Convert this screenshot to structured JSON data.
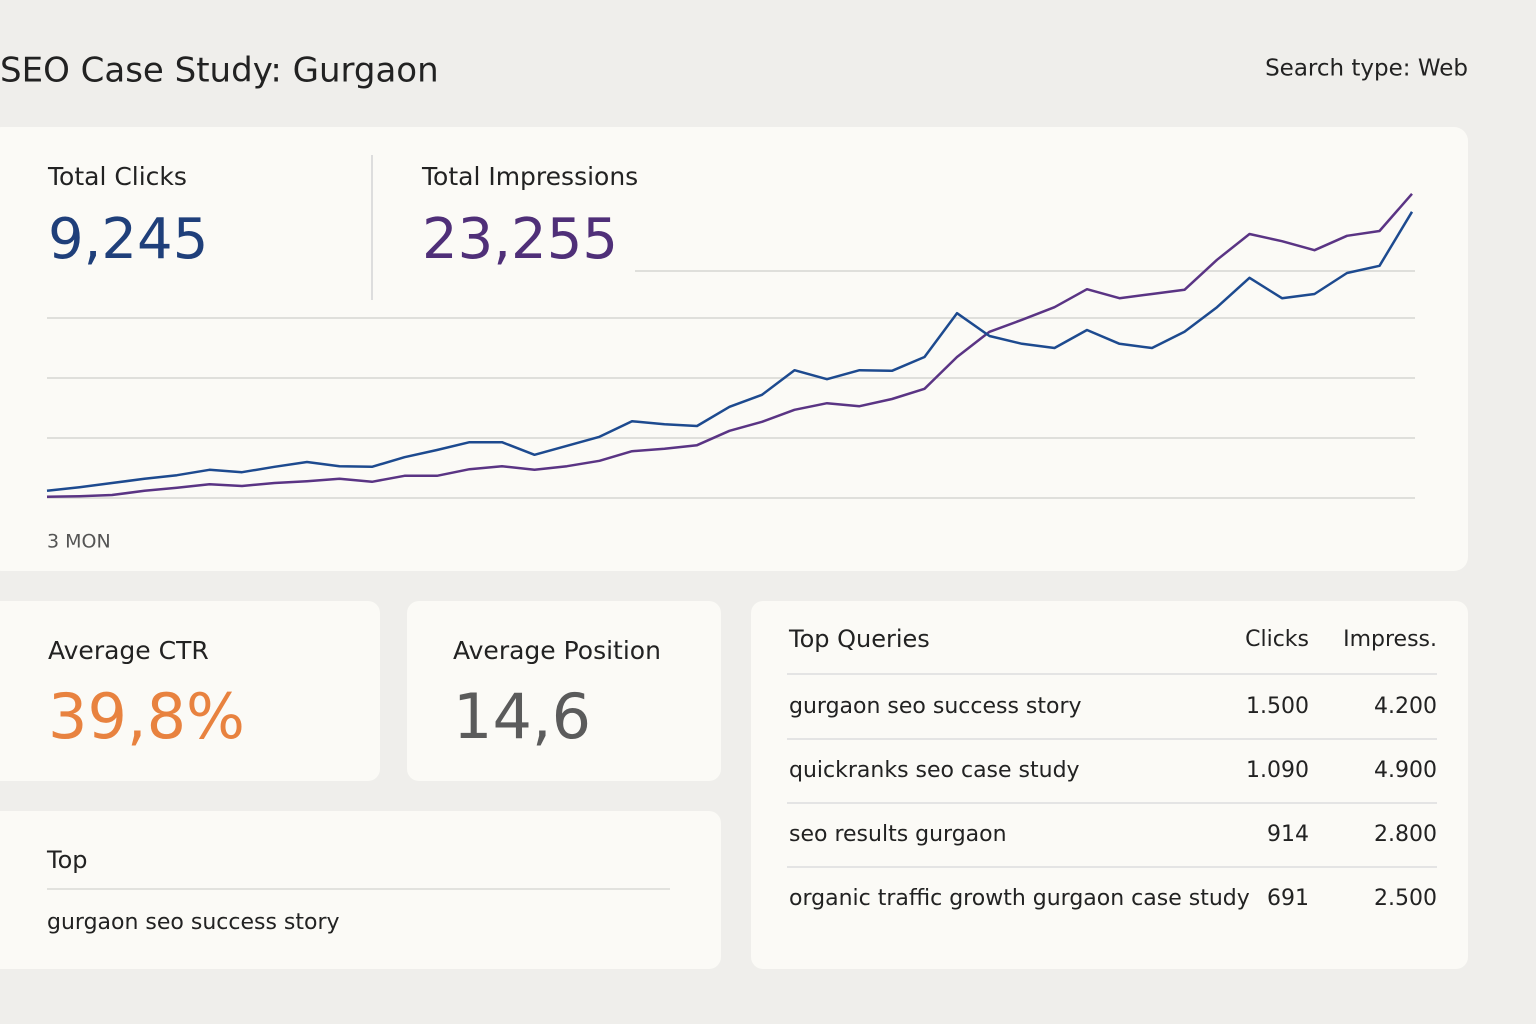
{
  "header": {
    "title": "SEO Case Study: Gurgaon",
    "search_type": "Search type: Web"
  },
  "metrics": {
    "clicks": {
      "label": "Total Clicks",
      "value": "9,245"
    },
    "impressions": {
      "label": "Total Impressions",
      "value": "23,255"
    },
    "ctr": {
      "label": "Average CTR",
      "value": "39,8%"
    },
    "position": {
      "label": "Average Position",
      "value": "14,6"
    }
  },
  "chart_data": {
    "type": "line",
    "xlabel": "3 MON",
    "categories": [
      null,
      null,
      null,
      null,
      null,
      null,
      null,
      null,
      null,
      null,
      null,
      null,
      null,
      null,
      null,
      null,
      null,
      null,
      null,
      null,
      null,
      null,
      null,
      null,
      null,
      null,
      null,
      null,
      null,
      null,
      null,
      null,
      null,
      null,
      null,
      null,
      null,
      null,
      null,
      null,
      null,
      null,
      null
    ],
    "series": [
      {
        "color": "#1d4a8f",
        "values": [
          0.12,
          0.18,
          0.25,
          0.32,
          0.38,
          0.47,
          0.43,
          0.52,
          0.6,
          0.53,
          0.52,
          0.68,
          0.8,
          0.93,
          0.93,
          0.72,
          0.87,
          1.02,
          1.28,
          1.23,
          1.2,
          1.52,
          1.72,
          2.13,
          1.98,
          2.13,
          2.12,
          2.35,
          3.08,
          2.7,
          2.57,
          2.5,
          2.8,
          2.57,
          2.5,
          2.77,
          3.18,
          3.67,
          3.33,
          3.4,
          3.75,
          3.87,
          4.77
        ]
      },
      {
        "color": "#5a3484",
        "values": [
          0.02,
          0.03,
          0.05,
          0.12,
          0.17,
          0.23,
          0.2,
          0.25,
          0.28,
          0.32,
          0.27,
          0.37,
          0.37,
          0.48,
          0.53,
          0.47,
          0.53,
          0.62,
          0.78,
          0.82,
          0.88,
          1.12,
          1.27,
          1.47,
          1.58,
          1.53,
          1.65,
          1.82,
          2.35,
          2.77,
          2.97,
          3.18,
          3.48,
          3.33,
          3.4,
          3.47,
          3.97,
          4.4,
          4.28,
          4.13,
          4.37,
          4.45,
          5.07
        ]
      }
    ],
    "ylim": [
      0,
      5.2
    ],
    "yticks": [
      0,
      1,
      2,
      3
    ],
    "grid": true
  },
  "top_card": {
    "title": "Top",
    "item": "gurgaon seo success story"
  },
  "queries": {
    "title": "Top Queries",
    "columns": [
      "Clicks",
      "Impress."
    ],
    "rows": [
      [
        "gurgaon seo success story",
        "1.500",
        "4.200"
      ],
      [
        "quickranks seo case study",
        "1.090",
        "4.900"
      ],
      [
        "seo results gurgaon",
        "914",
        "2.800"
      ],
      [
        "organic traffic growth gurgaon case study",
        "691",
        "2.500"
      ]
    ]
  }
}
